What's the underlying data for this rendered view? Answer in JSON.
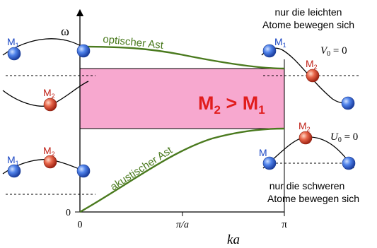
{
  "axes": {
    "y_label": "ω",
    "x_label": "ka",
    "y_zero": "0",
    "x_ticks": [
      "0",
      "π/a",
      "π"
    ]
  },
  "branches": {
    "optical_label": "optischer Ast",
    "acoustic_label": "akustischer Ast"
  },
  "gap": {
    "label_main": "M",
    "label_sub1": "2",
    "label_op": " > ",
    "label_main2": "M",
    "label_sub2": "1",
    "fill_color": "#f7a8cf",
    "text_color": "#e11d1d"
  },
  "captions": {
    "top_line1": "nur die leichten",
    "top_line2": "Atome bewegen sich",
    "bottom_line1": "nur die schweren",
    "bottom_line2": "Atome bewegen sich",
    "v0": "V",
    "v0_sub": "0",
    "v0_rest": " = 0",
    "u0": "U",
    "u0_sub": "0",
    "u0_rest": " = 0"
  },
  "atoms": {
    "m1_main": "M",
    "m1_sub": "1",
    "m2_main": "M",
    "m2_sub": "2",
    "m1_color": "#3a6fe0",
    "m2_color": "#e2533e"
  },
  "colors": {
    "branch": "#4a7a1e",
    "m1_text": "#1d48c4",
    "m2_text": "#c0241a"
  }
}
